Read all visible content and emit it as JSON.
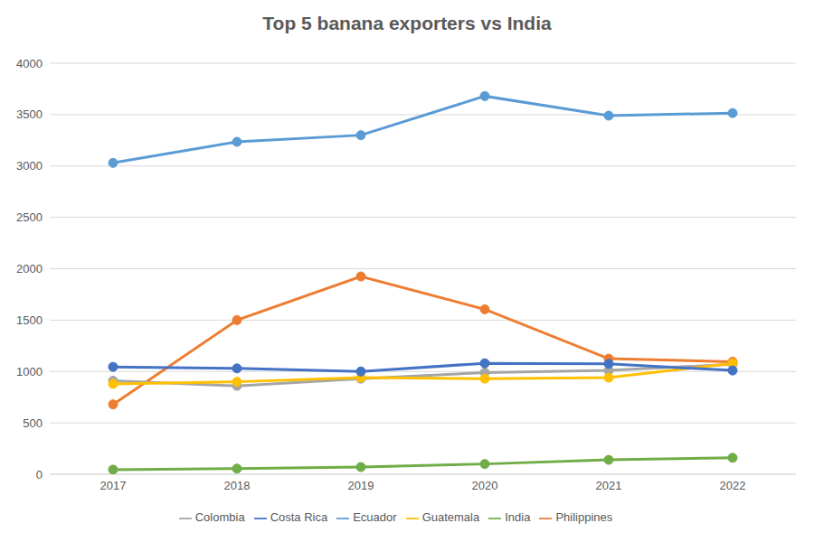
{
  "chart_data": {
    "type": "line",
    "title": "Top 5 banana exporters vs India",
    "categories": [
      "2017",
      "2018",
      "2019",
      "2020",
      "2021",
      "2022"
    ],
    "series": [
      {
        "name": "Ecuador",
        "color": "#5b9bd5",
        "values": [
          3030,
          3235,
          3300,
          3680,
          3490,
          3515
        ]
      },
      {
        "name": "Philippines",
        "color": "#ed7d31",
        "values": [
          680,
          1500,
          1925,
          1605,
          1125,
          1095
        ]
      },
      {
        "name": "Colombia",
        "color": "#a5a5a5",
        "values": [
          910,
          860,
          930,
          990,
          1010,
          1070
        ]
      },
      {
        "name": "Guatemala",
        "color": "#ffc000",
        "values": [
          880,
          900,
          940,
          930,
          940,
          1080
        ]
      },
      {
        "name": "Costa Rica",
        "color": "#4472c4",
        "values": [
          1045,
          1030,
          1000,
          1080,
          1075,
          1010
        ]
      },
      {
        "name": "India",
        "color": "#70ad47",
        "values": [
          45,
          55,
          70,
          100,
          140,
          160
        ]
      }
    ],
    "ylim": [
      0,
      4000
    ],
    "yticks": [
      0,
      500,
      1000,
      1500,
      2000,
      2500,
      3000,
      3500,
      4000
    ],
    "grid": true,
    "legend": "bottom",
    "marker": "circle"
  }
}
